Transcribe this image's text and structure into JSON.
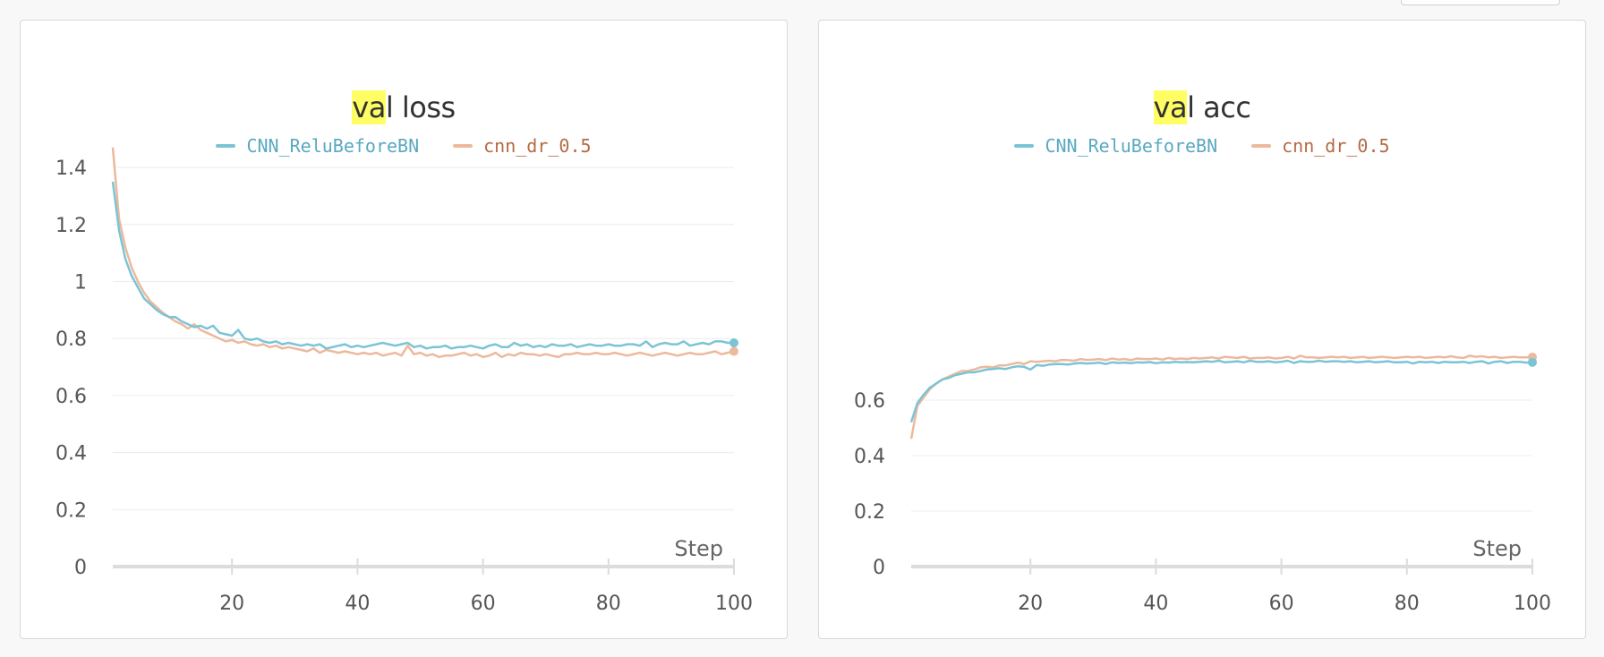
{
  "chart_data": [
    {
      "type": "line",
      "title_highlight": "va",
      "title_rest": "l loss",
      "xlabel": "Step",
      "ylabel": "",
      "xlim": [
        1,
        100
      ],
      "ylim": [
        0,
        1.5
      ],
      "x_ticks": [
        20,
        40,
        60,
        80,
        100
      ],
      "y_ticks": [
        0,
        0.2,
        0.4,
        0.6,
        0.8,
        1,
        1.2,
        1.4
      ],
      "y_tick_labels": [
        "0",
        "0.2",
        "0.4",
        "0.6",
        "0.8",
        "1",
        "1.2",
        "1.4"
      ],
      "grid": true,
      "legend_position": "top-center",
      "series": [
        {
          "name": "CNN_ReluBeforeBN",
          "color": "#7bc4d6",
          "text_color": "#5aa8c2",
          "values": [
            1.35,
            1.18,
            1.08,
            1.02,
            0.98,
            0.94,
            0.92,
            0.9,
            0.885,
            0.875,
            0.875,
            0.86,
            0.85,
            0.84,
            0.845,
            0.835,
            0.845,
            0.82,
            0.815,
            0.81,
            0.83,
            0.8,
            0.795,
            0.8,
            0.79,
            0.785,
            0.79,
            0.78,
            0.785,
            0.78,
            0.775,
            0.78,
            0.775,
            0.78,
            0.765,
            0.77,
            0.775,
            0.78,
            0.77,
            0.775,
            0.77,
            0.775,
            0.78,
            0.785,
            0.78,
            0.775,
            0.78,
            0.785,
            0.77,
            0.775,
            0.765,
            0.77,
            0.77,
            0.775,
            0.765,
            0.77,
            0.77,
            0.775,
            0.77,
            0.765,
            0.775,
            0.78,
            0.77,
            0.77,
            0.785,
            0.775,
            0.78,
            0.77,
            0.775,
            0.77,
            0.78,
            0.775,
            0.775,
            0.78,
            0.77,
            0.775,
            0.78,
            0.775,
            0.775,
            0.78,
            0.775,
            0.775,
            0.78,
            0.78,
            0.775,
            0.79,
            0.77,
            0.78,
            0.785,
            0.78,
            0.78,
            0.79,
            0.775,
            0.78,
            0.785,
            0.78,
            0.79,
            0.79,
            0.785,
            0.785
          ]
        },
        {
          "name": "cnn_dr_0.5",
          "color": "#ecb99c",
          "text_color": "#b56a45",
          "values": [
            1.47,
            1.22,
            1.12,
            1.05,
            1.0,
            0.96,
            0.93,
            0.91,
            0.89,
            0.875,
            0.86,
            0.85,
            0.835,
            0.85,
            0.83,
            0.82,
            0.81,
            0.8,
            0.79,
            0.795,
            0.785,
            0.79,
            0.78,
            0.775,
            0.78,
            0.77,
            0.775,
            0.765,
            0.77,
            0.765,
            0.76,
            0.755,
            0.765,
            0.75,
            0.76,
            0.755,
            0.75,
            0.755,
            0.75,
            0.745,
            0.75,
            0.745,
            0.75,
            0.74,
            0.745,
            0.75,
            0.74,
            0.775,
            0.745,
            0.75,
            0.74,
            0.745,
            0.735,
            0.74,
            0.74,
            0.745,
            0.75,
            0.74,
            0.745,
            0.735,
            0.74,
            0.75,
            0.735,
            0.745,
            0.74,
            0.75,
            0.745,
            0.745,
            0.74,
            0.745,
            0.74,
            0.735,
            0.745,
            0.745,
            0.75,
            0.745,
            0.745,
            0.75,
            0.745,
            0.745,
            0.75,
            0.745,
            0.74,
            0.745,
            0.75,
            0.745,
            0.74,
            0.745,
            0.75,
            0.745,
            0.74,
            0.745,
            0.75,
            0.745,
            0.745,
            0.75,
            0.755,
            0.745,
            0.75,
            0.755
          ]
        }
      ]
    },
    {
      "type": "line",
      "title_highlight": "va",
      "title_rest": "l acc",
      "xlabel": "Step",
      "ylabel": "",
      "xlim": [
        1,
        100
      ],
      "ylim": [
        0,
        0.75
      ],
      "x_ticks": [
        20,
        40,
        60,
        80,
        100
      ],
      "y_ticks": [
        0,
        0.2,
        0.4,
        0.6
      ],
      "y_tick_labels": [
        "0",
        "0.2",
        "0.4",
        "0.6"
      ],
      "grid": true,
      "legend_position": "top-center",
      "series": [
        {
          "name": "CNN_ReluBeforeBN",
          "color": "#7bc4d6",
          "text_color": "#5aa8c2",
          "values": [
            0.52,
            0.59,
            0.62,
            0.645,
            0.66,
            0.675,
            0.68,
            0.69,
            0.695,
            0.7,
            0.7,
            0.705,
            0.71,
            0.712,
            0.715,
            0.712,
            0.718,
            0.722,
            0.72,
            0.71,
            0.726,
            0.724,
            0.728,
            0.73,
            0.73,
            0.728,
            0.732,
            0.734,
            0.732,
            0.733,
            0.735,
            0.73,
            0.736,
            0.734,
            0.735,
            0.733,
            0.736,
            0.735,
            0.737,
            0.733,
            0.736,
            0.735,
            0.738,
            0.736,
            0.737,
            0.736,
            0.738,
            0.74,
            0.738,
            0.742,
            0.736,
            0.738,
            0.74,
            0.736,
            0.742,
            0.738,
            0.738,
            0.74,
            0.736,
            0.738,
            0.742,
            0.734,
            0.74,
            0.738,
            0.738,
            0.742,
            0.738,
            0.74,
            0.74,
            0.738,
            0.74,
            0.736,
            0.738,
            0.74,
            0.736,
            0.738,
            0.74,
            0.736,
            0.736,
            0.738,
            0.732,
            0.738,
            0.736,
            0.738,
            0.734,
            0.738,
            0.736,
            0.736,
            0.738,
            0.734,
            0.738,
            0.74,
            0.732,
            0.738,
            0.74,
            0.734,
            0.738,
            0.738,
            0.735,
            0.736
          ]
        },
        {
          "name": "cnn_dr_0.5",
          "color": "#ecb99c",
          "text_color": "#b56a45",
          "values": [
            0.46,
            0.58,
            0.61,
            0.64,
            0.66,
            0.675,
            0.685,
            0.695,
            0.705,
            0.705,
            0.71,
            0.718,
            0.72,
            0.718,
            0.725,
            0.725,
            0.73,
            0.735,
            0.73,
            0.74,
            0.738,
            0.74,
            0.742,
            0.74,
            0.745,
            0.744,
            0.742,
            0.748,
            0.745,
            0.746,
            0.748,
            0.744,
            0.75,
            0.746,
            0.748,
            0.744,
            0.75,
            0.748,
            0.748,
            0.75,
            0.746,
            0.752,
            0.748,
            0.75,
            0.748,
            0.752,
            0.75,
            0.752,
            0.754,
            0.75,
            0.756,
            0.754,
            0.752,
            0.756,
            0.75,
            0.752,
            0.752,
            0.754,
            0.75,
            0.752,
            0.756,
            0.75,
            0.76,
            0.754,
            0.754,
            0.752,
            0.754,
            0.756,
            0.754,
            0.756,
            0.752,
            0.754,
            0.756,
            0.752,
            0.754,
            0.756,
            0.754,
            0.752,
            0.754,
            0.756,
            0.754,
            0.756,
            0.752,
            0.754,
            0.756,
            0.754,
            0.758,
            0.754,
            0.752,
            0.76,
            0.756,
            0.758,
            0.754,
            0.756,
            0.752,
            0.754,
            0.756,
            0.754,
            0.754,
            0.755
          ]
        }
      ]
    }
  ]
}
